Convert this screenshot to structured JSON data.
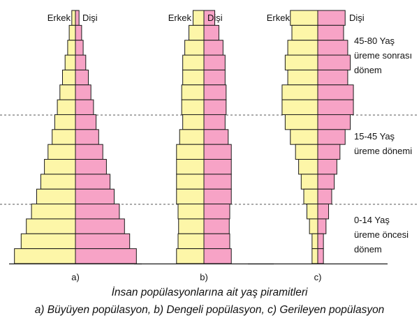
{
  "labels": {
    "male": "Erkek",
    "female": "Dişi"
  },
  "age_groups": [
    {
      "range": "45-80 Yaş",
      "lines": [
        "45-80 Yaş",
        "üreme sonrası",
        "dönem"
      ]
    },
    {
      "range": "15-45 Yaş",
      "lines": [
        "15-45 Yaş",
        "üreme dönemi"
      ]
    },
    {
      "range": "0-14 Yaş",
      "lines": [
        "0-14 Yaş",
        "üreme öncesi",
        "dönem"
      ]
    }
  ],
  "pyramids": [
    {
      "label": "a)",
      "male": [
        0.7,
        1.2,
        1.5,
        2.0,
        2.5,
        3.0,
        3.5,
        4.0,
        4.5,
        5.3,
        6.0,
        6.7,
        7.5,
        8.5,
        9.5,
        10.5,
        11.8
      ],
      "female": [
        0.7,
        1.2,
        1.5,
        2.0,
        2.5,
        3.0,
        3.5,
        4.0,
        4.5,
        5.3,
        6.0,
        6.7,
        7.5,
        8.5,
        9.5,
        10.5,
        11.8
      ]
    },
    {
      "label": "b)",
      "male": [
        2.1,
        2.9,
        3.7,
        4.1,
        4.1,
        4.3,
        4.3,
        4.1,
        4.7,
        5.3,
        5.3,
        5.3,
        5.3,
        5.0,
        4.9,
        5.0,
        5.3
      ],
      "female": [
        2.1,
        2.9,
        3.7,
        4.1,
        4.1,
        4.3,
        4.3,
        4.1,
        4.7,
        5.3,
        5.3,
        5.3,
        5.3,
        5.0,
        4.9,
        5.0,
        5.3
      ]
    },
    {
      "label": "c)",
      "male": [
        5.3,
        5.0,
        5.8,
        6.3,
        5.8,
        6.9,
        6.9,
        6.3,
        5.3,
        4.3,
        3.7,
        3.2,
        2.7,
        2.1,
        1.6,
        1.1,
        1.1
      ],
      "female": [
        5.3,
        5.0,
        5.8,
        6.3,
        5.8,
        6.9,
        6.9,
        6.3,
        5.3,
        4.3,
        3.7,
        3.2,
        2.7,
        2.1,
        1.6,
        1.1,
        1.1
      ]
    }
  ],
  "caption": {
    "title": "İnsan popülasyonlarına ait yaş piramitleri",
    "subtitle": "a) Büyüyen popülasyon, b) Dengeli popülasyon, c) Gerileyen popülasyon"
  },
  "colors": {
    "male": "#fdf6a8",
    "female": "#f7a3c6",
    "outline": "#1a1a1a"
  }
}
